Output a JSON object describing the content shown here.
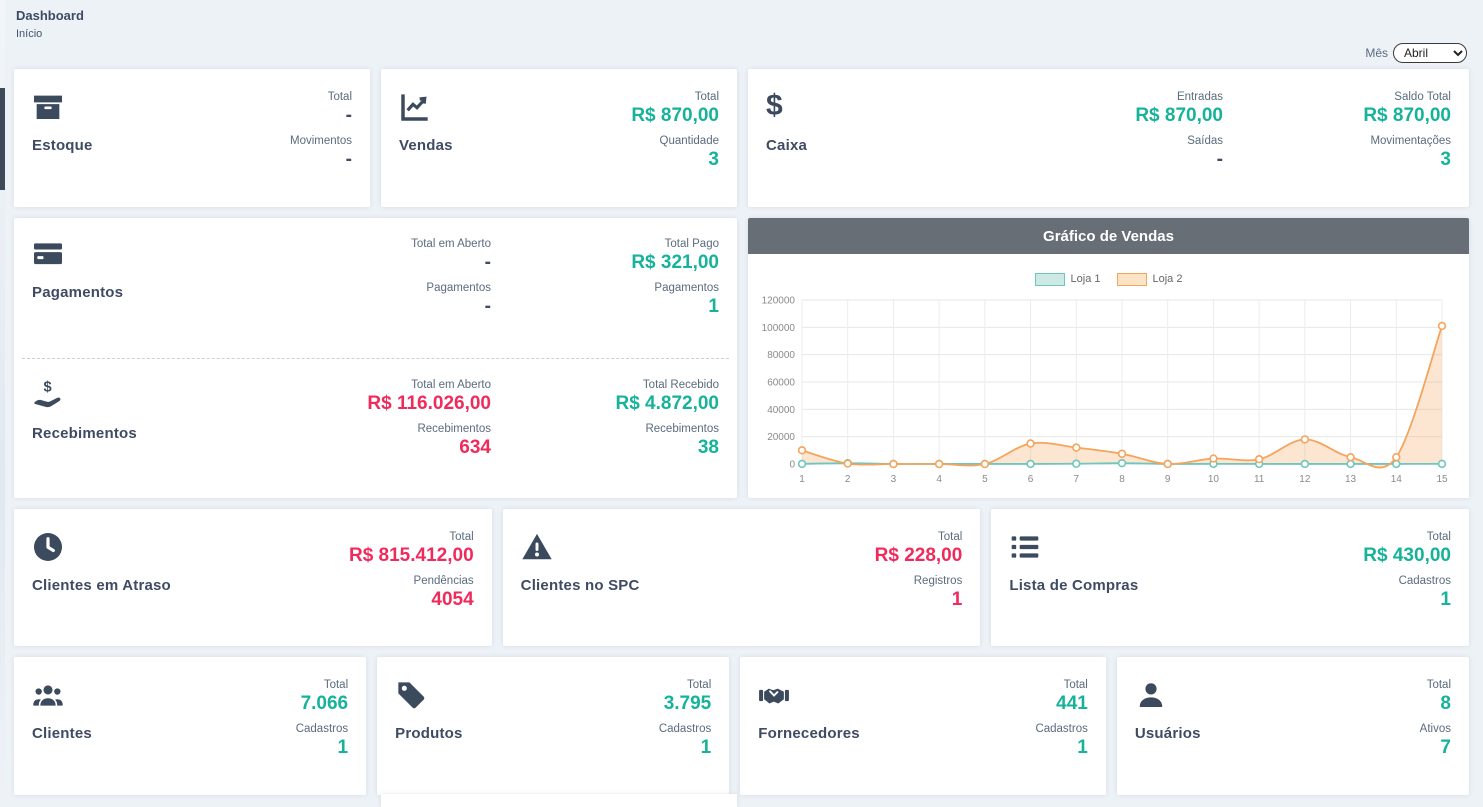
{
  "page": {
    "title": "Dashboard",
    "subtitle": "Início"
  },
  "filter": {
    "label": "Mês",
    "selected": "Abril"
  },
  "colors": {
    "positive": "#16B39A",
    "negative": "#F12A5C",
    "icon": "#3C4A5E",
    "chart_header_bg": "#676E76"
  },
  "cards": {
    "estoque": {
      "title": "Estoque",
      "icon": "box-archive-icon",
      "stats": [
        {
          "label": "Total",
          "value": "-",
          "tone": "plain"
        },
        {
          "label": "Movimentos",
          "value": "-",
          "tone": "plain"
        }
      ]
    },
    "vendas": {
      "title": "Vendas",
      "icon": "chart-line-icon",
      "stats": [
        {
          "label": "Total",
          "value": "R$ 870,00",
          "tone": "green"
        },
        {
          "label": "Quantidade",
          "value": "3",
          "tone": "green"
        }
      ]
    },
    "caixa": {
      "title": "Caixa",
      "icon": "dollar-icon",
      "col1": [
        {
          "label": "Entradas",
          "value": "R$ 870,00",
          "tone": "green"
        },
        {
          "label": "Saídas",
          "value": "-",
          "tone": "plain"
        }
      ],
      "col2": [
        {
          "label": "Saldo Total",
          "value": "R$ 870,00",
          "tone": "green"
        },
        {
          "label": "Movimentações",
          "value": "3",
          "tone": "green"
        }
      ]
    },
    "pagamentos": {
      "title": "Pagamentos",
      "icon": "credit-card-icon",
      "col1": [
        {
          "label": "Total em Aberto",
          "value": "-",
          "tone": "plain"
        },
        {
          "label": "Pagamentos",
          "value": "-",
          "tone": "plain"
        }
      ],
      "col2": [
        {
          "label": "Total Pago",
          "value": "R$ 321,00",
          "tone": "green"
        },
        {
          "label": "Pagamentos",
          "value": "1",
          "tone": "green"
        }
      ]
    },
    "recebimentos": {
      "title": "Recebimentos",
      "icon": "hand-holding-dollar-icon",
      "col1": [
        {
          "label": "Total em Aberto",
          "value": "R$ 116.026,00",
          "tone": "red"
        },
        {
          "label": "Recebimentos",
          "value": "634",
          "tone": "red"
        }
      ],
      "col2": [
        {
          "label": "Total Recebido",
          "value": "R$ 4.872,00",
          "tone": "green"
        },
        {
          "label": "Recebimentos",
          "value": "38",
          "tone": "green"
        }
      ]
    },
    "clientes_atraso": {
      "title": "Clientes em Atraso",
      "icon": "clock-icon",
      "stats": [
        {
          "label": "Total",
          "value": "R$ 815.412,00",
          "tone": "red"
        },
        {
          "label": "Pendências",
          "value": "4054",
          "tone": "red"
        }
      ]
    },
    "clientes_spc": {
      "title": "Clientes no SPC",
      "icon": "warning-triangle-icon",
      "stats": [
        {
          "label": "Total",
          "value": "R$ 228,00",
          "tone": "red"
        },
        {
          "label": "Registros",
          "value": "1",
          "tone": "red"
        }
      ]
    },
    "lista_compras": {
      "title": "Lista de Compras",
      "icon": "list-icon",
      "stats": [
        {
          "label": "Total",
          "value": "R$ 430,00",
          "tone": "green"
        },
        {
          "label": "Cadastros",
          "value": "1",
          "tone": "green"
        }
      ]
    },
    "clientes": {
      "title": "Clientes",
      "icon": "users-icon",
      "stats": [
        {
          "label": "Total",
          "value": "7.066",
          "tone": "green"
        },
        {
          "label": "Cadastros",
          "value": "1",
          "tone": "green"
        }
      ]
    },
    "produtos": {
      "title": "Produtos",
      "icon": "tag-icon",
      "stats": [
        {
          "label": "Total",
          "value": "3.795",
          "tone": "green"
        },
        {
          "label": "Cadastros",
          "value": "1",
          "tone": "green"
        }
      ]
    },
    "fornecedores": {
      "title": "Fornecedores",
      "icon": "handshake-icon",
      "stats": [
        {
          "label": "Total",
          "value": "441",
          "tone": "green"
        },
        {
          "label": "Cadastros",
          "value": "1",
          "tone": "green"
        }
      ]
    },
    "usuarios": {
      "title": "Usuários",
      "icon": "user-icon",
      "stats": [
        {
          "label": "Total",
          "value": "8",
          "tone": "green"
        },
        {
          "label": "Ativos",
          "value": "7",
          "tone": "green"
        }
      ]
    }
  },
  "chart_data": {
    "type": "area",
    "title": "Gráfico de Vendas",
    "x": [
      1,
      2,
      3,
      4,
      5,
      6,
      7,
      8,
      9,
      10,
      11,
      12,
      13,
      14,
      15
    ],
    "series": [
      {
        "name": "Loja 1",
        "color": "#6EC6BD",
        "area_fill": "rgba(110,198,189,0.25)",
        "legend_fill": "#CDE9E5",
        "values": [
          100,
          600,
          50,
          50,
          50,
          50,
          200,
          600,
          50,
          100,
          50,
          50,
          50,
          50,
          100
        ]
      },
      {
        "name": "Loja 2",
        "color": "#F5A45C",
        "area_fill": "rgba(245,164,92,0.28)",
        "legend_fill": "#FBE3C5",
        "values": [
          10000,
          300,
          0,
          0,
          0,
          15000,
          12000,
          7500,
          0,
          4000,
          3500,
          18000,
          5000,
          5000,
          101000
        ]
      }
    ],
    "ylim": [
      0,
      120000
    ],
    "yticks": [
      0,
      20000,
      40000,
      60000,
      80000,
      100000,
      120000
    ],
    "grid": true,
    "legend_position": "top"
  }
}
